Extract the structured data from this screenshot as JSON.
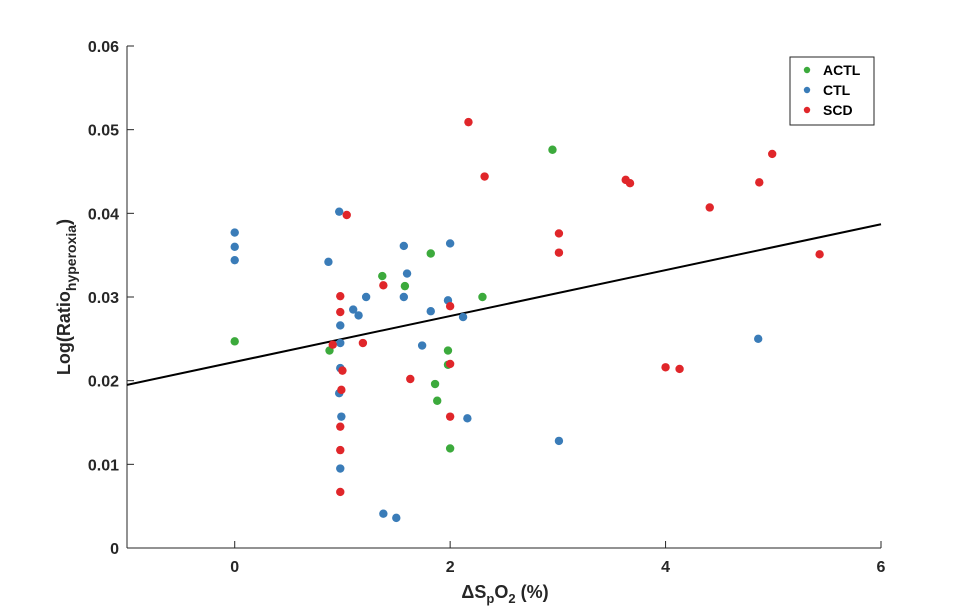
{
  "chart_data": {
    "type": "scatter",
    "xlabel": "ΔSpO2 (%)",
    "ylabel": "Log(Ratiohyperoxia)",
    "xlim": [
      -1,
      6
    ],
    "ylim": [
      0,
      0.06
    ],
    "x_ticks": [
      "0",
      "2",
      "4",
      "6"
    ],
    "x_tick_values": [
      0,
      2,
      4,
      6
    ],
    "y_ticks": [
      "0",
      "0.01",
      "0.02",
      "0.03",
      "0.04",
      "0.05",
      "0.06"
    ],
    "y_tick_values": [
      0,
      0.01,
      0.02,
      0.03,
      0.04,
      0.05,
      0.06
    ],
    "grid": false,
    "legend_position": "top-right",
    "series": [
      {
        "name": "ACTL",
        "color": "#3caa3c",
        "points": [
          [
            0,
            0.0247
          ],
          [
            0.88,
            0.0236
          ],
          [
            1.37,
            0.0325
          ],
          [
            1.58,
            0.0313
          ],
          [
            1.82,
            0.0352
          ],
          [
            1.86,
            0.0196
          ],
          [
            1.88,
            0.0176
          ],
          [
            1.98,
            0.0236
          ],
          [
            1.98,
            0.0219
          ],
          [
            2.0,
            0.0119
          ],
          [
            2.3,
            0.03
          ],
          [
            2.95,
            0.0476
          ]
        ]
      },
      {
        "name": "CTL",
        "color": "#3a7cb8",
        "points": [
          [
            0,
            0.0377
          ],
          [
            0,
            0.036
          ],
          [
            0,
            0.0344
          ],
          [
            0.87,
            0.0342
          ],
          [
            0.97,
            0.0402
          ],
          [
            0.98,
            0.0266
          ],
          [
            0.98,
            0.0245
          ],
          [
            0.98,
            0.0215
          ],
          [
            0.97,
            0.0185
          ],
          [
            0.99,
            0.0157
          ],
          [
            0.98,
            0.0095
          ],
          [
            1.1,
            0.0285
          ],
          [
            1.15,
            0.0278
          ],
          [
            1.22,
            0.03
          ],
          [
            1.38,
            0.0041
          ],
          [
            1.5,
            0.0036
          ],
          [
            1.57,
            0.0361
          ],
          [
            1.57,
            0.03
          ],
          [
            1.6,
            0.0328
          ],
          [
            1.74,
            0.0242
          ],
          [
            1.82,
            0.0283
          ],
          [
            2.0,
            0.0364
          ],
          [
            1.98,
            0.0296
          ],
          [
            2.12,
            0.0276
          ],
          [
            2.16,
            0.0155
          ],
          [
            3.01,
            0.0128
          ],
          [
            4.86,
            0.025
          ]
        ]
      },
      {
        "name": "SCD",
        "color": "#e0262a",
        "points": [
          [
            0.91,
            0.0243
          ],
          [
            0.98,
            0.0301
          ],
          [
            0.98,
            0.0282
          ],
          [
            1.0,
            0.0212
          ],
          [
            0.99,
            0.0189
          ],
          [
            0.98,
            0.0145
          ],
          [
            0.98,
            0.0117
          ],
          [
            0.98,
            0.0067
          ],
          [
            1.04,
            0.0398
          ],
          [
            1.19,
            0.0245
          ],
          [
            1.38,
            0.0314
          ],
          [
            1.63,
            0.0202
          ],
          [
            2.0,
            0.0289
          ],
          [
            2.0,
            0.022
          ],
          [
            2.0,
            0.0157
          ],
          [
            2.17,
            0.0509
          ],
          [
            2.32,
            0.0444
          ],
          [
            3.01,
            0.0376
          ],
          [
            3.01,
            0.0353
          ],
          [
            3.63,
            0.044
          ],
          [
            3.67,
            0.0436
          ],
          [
            4.0,
            0.0216
          ],
          [
            4.13,
            0.0214
          ],
          [
            4.41,
            0.0407
          ],
          [
            4.87,
            0.0437
          ],
          [
            4.99,
            0.0471
          ],
          [
            5.43,
            0.0351
          ]
        ]
      }
    ],
    "fit_line": {
      "color": "#000000",
      "x": [
        -1,
        6
      ],
      "y": [
        0.0195,
        0.0387
      ]
    }
  }
}
